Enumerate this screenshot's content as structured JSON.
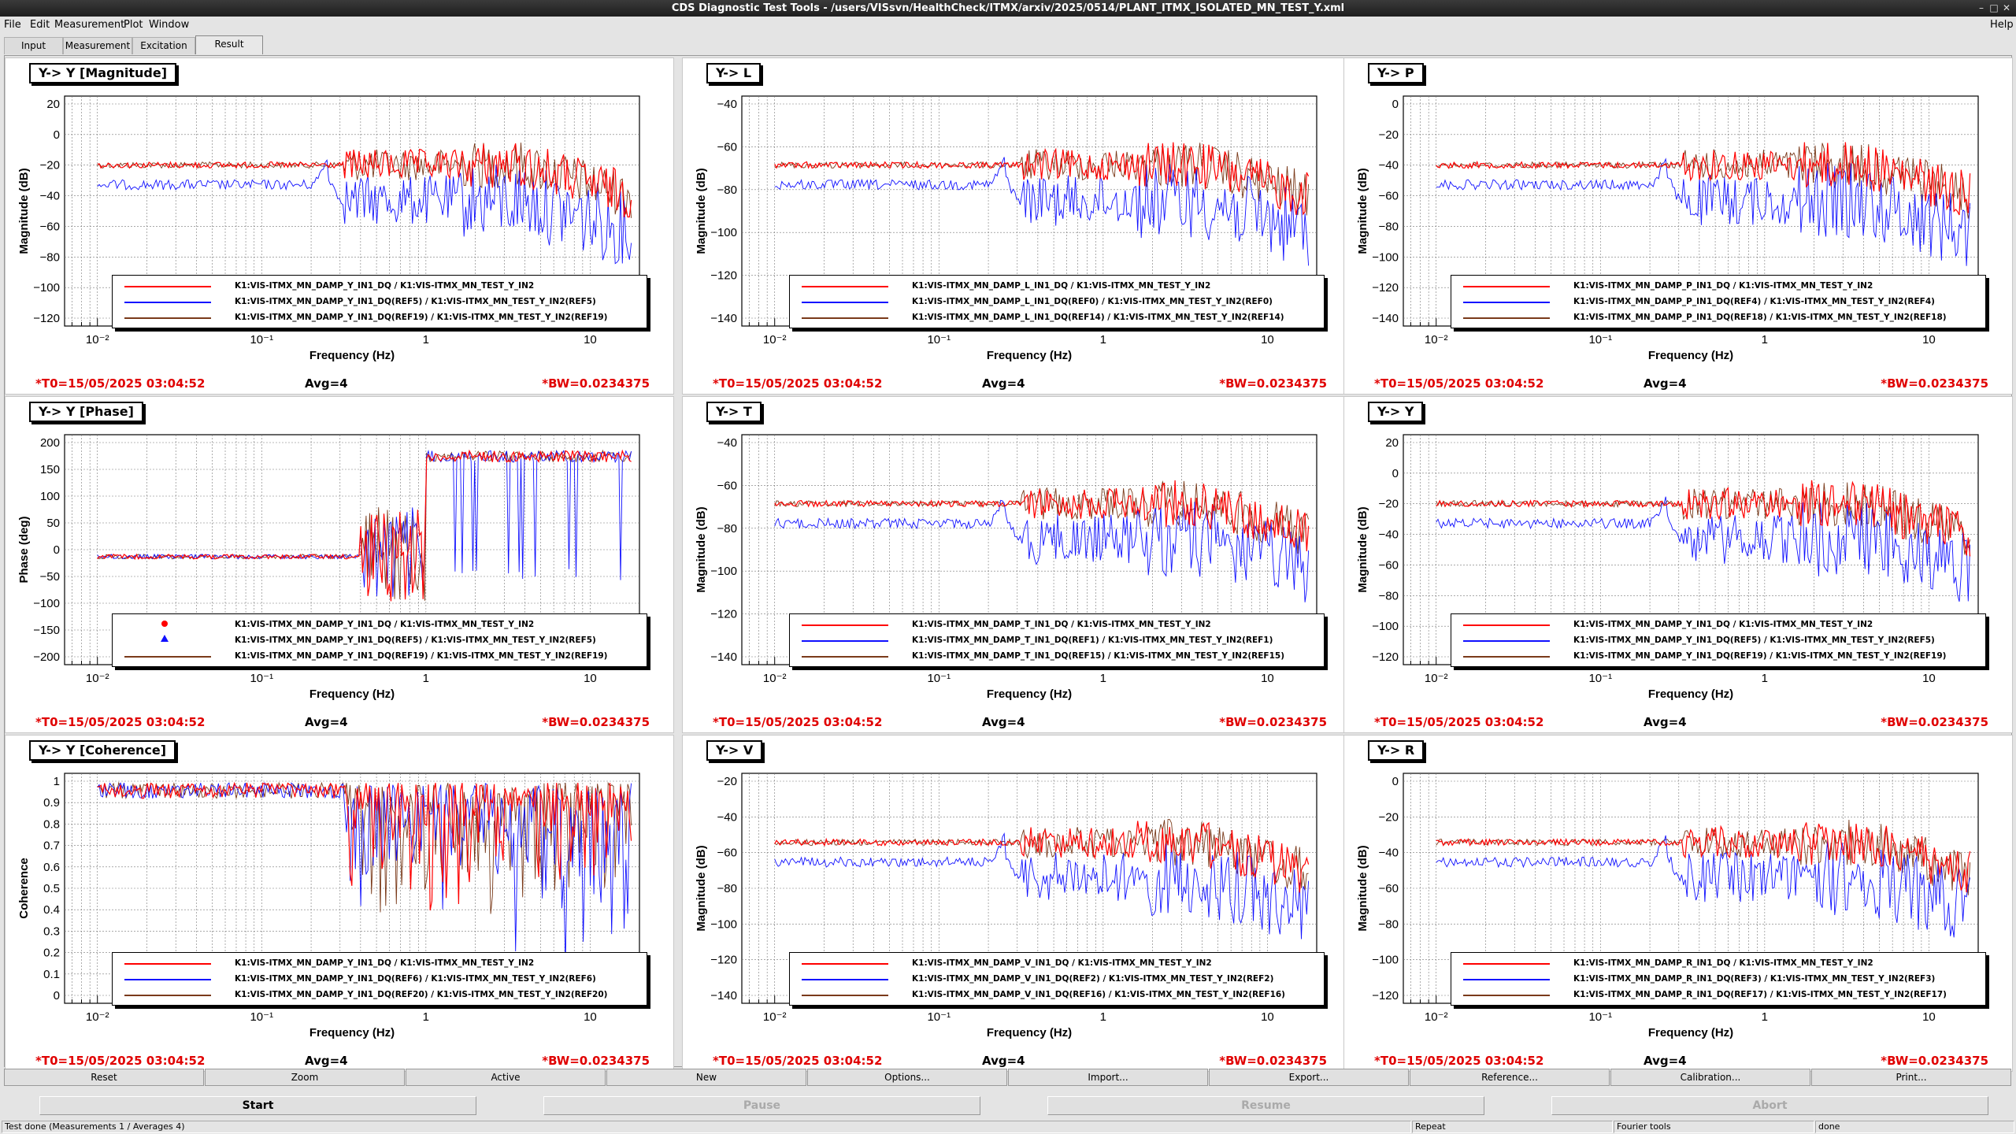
{
  "window": {
    "title": "CDS Diagnostic Test Tools - /users/VISsvn/HealthCheck/ITMX/arxiv/2025/0514/PLANT_ITMX_ISOLATED_MN_TEST_Y.xml",
    "minimize": "–",
    "maximize": "□",
    "close": "✕"
  },
  "menu": {
    "file": "File",
    "edit": "Edit",
    "measurement": "Measurement",
    "plot": "Plot",
    "window": "Window",
    "help": "Help"
  },
  "tabs": {
    "input": "Input",
    "measurement": "Measurement",
    "excitation": "Excitation",
    "result": "Result"
  },
  "footer": {
    "t0": "*T0=15/05/2025 03:04:52",
    "avg": "Avg=4",
    "bw": "*BW=0.0234375"
  },
  "xaxis": {
    "label": "Frequency (Hz)",
    "ticks": [
      "10⁻²",
      "10⁻¹",
      "1",
      "10"
    ]
  },
  "pads": [
    {
      "title": "Y-> Y [Magnitude]",
      "ylabel": "Magnitude (dB)",
      "yticks": [
        "20",
        "0",
        "−20",
        "−40",
        "−60",
        "−80",
        "−100",
        "−120"
      ],
      "legend": [
        "K1:VIS-ITMX_MN_DAMP_Y_IN1_DQ / K1:VIS-ITMX_MN_TEST_Y_IN2",
        "K1:VIS-ITMX_MN_DAMP_Y_IN1_DQ(REF5) / K1:VIS-ITMX_MN_TEST_Y_IN2(REF5)",
        "K1:VIS-ITMX_MN_DAMP_Y_IN1_DQ(REF19) / K1:VIS-ITMX_MN_TEST_Y_IN2(REF19)"
      ]
    },
    {
      "title": "Y-> L",
      "ylabel": "Magnitude (dB)",
      "yticks": [
        "−40",
        "−60",
        "−80",
        "−100",
        "−120",
        "−140"
      ],
      "legend": [
        "K1:VIS-ITMX_MN_DAMP_L_IN1_DQ / K1:VIS-ITMX_MN_TEST_Y_IN2",
        "K1:VIS-ITMX_MN_DAMP_L_IN1_DQ(REF0) / K1:VIS-ITMX_MN_TEST_Y_IN2(REF0)",
        "K1:VIS-ITMX_MN_DAMP_L_IN1_DQ(REF14) / K1:VIS-ITMX_MN_TEST_Y_IN2(REF14)"
      ]
    },
    {
      "title": "Y-> P",
      "ylabel": "Magnitude (dB)",
      "yticks": [
        "0",
        "−20",
        "−40",
        "−60",
        "−80",
        "−100",
        "−120",
        "−140"
      ],
      "legend": [
        "K1:VIS-ITMX_MN_DAMP_P_IN1_DQ / K1:VIS-ITMX_MN_TEST_Y_IN2",
        "K1:VIS-ITMX_MN_DAMP_P_IN1_DQ(REF4) / K1:VIS-ITMX_MN_TEST_Y_IN2(REF4)",
        "K1:VIS-ITMX_MN_DAMP_P_IN1_DQ(REF18) / K1:VIS-ITMX_MN_TEST_Y_IN2(REF18)"
      ]
    },
    {
      "title": "Y-> Y [Phase]",
      "ylabel": "Phase (deg)",
      "yticks": [
        "200",
        "150",
        "100",
        "50",
        "0",
        "−50",
        "−100",
        "−150",
        "−200"
      ],
      "legend": [
        "K1:VIS-ITMX_MN_DAMP_Y_IN1_DQ / K1:VIS-ITMX_MN_TEST_Y_IN2",
        "K1:VIS-ITMX_MN_DAMP_Y_IN1_DQ(REF5) / K1:VIS-ITMX_MN_TEST_Y_IN2(REF5)",
        "K1:VIS-ITMX_MN_DAMP_Y_IN1_DQ(REF19) / K1:VIS-ITMX_MN_TEST_Y_IN2(REF19)"
      ]
    },
    {
      "title": "Y-> T",
      "ylabel": "Magnitude (dB)",
      "yticks": [
        "−40",
        "−60",
        "−80",
        "−100",
        "−120",
        "−140"
      ],
      "legend": [
        "K1:VIS-ITMX_MN_DAMP_T_IN1_DQ / K1:VIS-ITMX_MN_TEST_Y_IN2",
        "K1:VIS-ITMX_MN_DAMP_T_IN1_DQ(REF1) / K1:VIS-ITMX_MN_TEST_Y_IN2(REF1)",
        "K1:VIS-ITMX_MN_DAMP_T_IN1_DQ(REF15) / K1:VIS-ITMX_MN_TEST_Y_IN2(REF15)"
      ]
    },
    {
      "title": "Y-> Y",
      "ylabel": "Magnitude (dB)",
      "yticks": [
        "20",
        "0",
        "−20",
        "−40",
        "−60",
        "−80",
        "−100",
        "−120"
      ],
      "legend": [
        "K1:VIS-ITMX_MN_DAMP_Y_IN1_DQ / K1:VIS-ITMX_MN_TEST_Y_IN2",
        "K1:VIS-ITMX_MN_DAMP_Y_IN1_DQ(REF5) / K1:VIS-ITMX_MN_TEST_Y_IN2(REF5)",
        "K1:VIS-ITMX_MN_DAMP_Y_IN1_DQ(REF19) / K1:VIS-ITMX_MN_TEST_Y_IN2(REF19)"
      ]
    },
    {
      "title": "Y-> Y [Coherence]",
      "ylabel": "Coherence",
      "yticks": [
        "1",
        "0.9",
        "0.8",
        "0.7",
        "0.6",
        "0.5",
        "0.4",
        "0.3",
        "0.2",
        "0.1",
        "0"
      ],
      "legend": [
        "K1:VIS-ITMX_MN_DAMP_Y_IN1_DQ / K1:VIS-ITMX_MN_TEST_Y_IN2",
        "K1:VIS-ITMX_MN_DAMP_Y_IN1_DQ(REF6) / K1:VIS-ITMX_MN_TEST_Y_IN2(REF6)",
        "K1:VIS-ITMX_MN_DAMP_Y_IN1_DQ(REF20) / K1:VIS-ITMX_MN_TEST_Y_IN2(REF20)"
      ]
    },
    {
      "title": "Y-> V",
      "ylabel": "Magnitude (dB)",
      "yticks": [
        "−20",
        "−40",
        "−60",
        "−80",
        "−100",
        "−120",
        "−140"
      ],
      "legend": [
        "K1:VIS-ITMX_MN_DAMP_V_IN1_DQ / K1:VIS-ITMX_MN_TEST_Y_IN2",
        "K1:VIS-ITMX_MN_DAMP_V_IN1_DQ(REF2) / K1:VIS-ITMX_MN_TEST_Y_IN2(REF2)",
        "K1:VIS-ITMX_MN_DAMP_V_IN1_DQ(REF16) / K1:VIS-ITMX_MN_TEST_Y_IN2(REF16)"
      ]
    },
    {
      "title": "Y-> R",
      "ylabel": "Magnitude (dB)",
      "yticks": [
        "0",
        "−20",
        "−40",
        "−60",
        "−80",
        "−100",
        "−120"
      ],
      "legend": [
        "K1:VIS-ITMX_MN_DAMP_R_IN1_DQ / K1:VIS-ITMX_MN_TEST_Y_IN2",
        "K1:VIS-ITMX_MN_DAMP_R_IN1_DQ(REF3) / K1:VIS-ITMX_MN_TEST_Y_IN2(REF3)",
        "K1:VIS-ITMX_MN_DAMP_R_IN1_DQ(REF17) / K1:VIS-ITMX_MN_TEST_Y_IN2(REF17)"
      ]
    }
  ],
  "series_colors": [
    "#ff0000",
    "#1010ff",
    "#7a3a1a"
  ],
  "buttons1": [
    "Reset",
    "Zoom",
    "Active",
    "New",
    "Options...",
    "Import...",
    "Export...",
    "Reference...",
    "Calibration...",
    "Print..."
  ],
  "buttons2": {
    "start": "Start",
    "pause": "Pause",
    "resume": "Resume",
    "abort": "Abort"
  },
  "status": {
    "left": "Test done (Measurements 1 / Averages 4)",
    "repeat": "Repeat",
    "fourier": "Fourier tools",
    "done": "done"
  }
}
